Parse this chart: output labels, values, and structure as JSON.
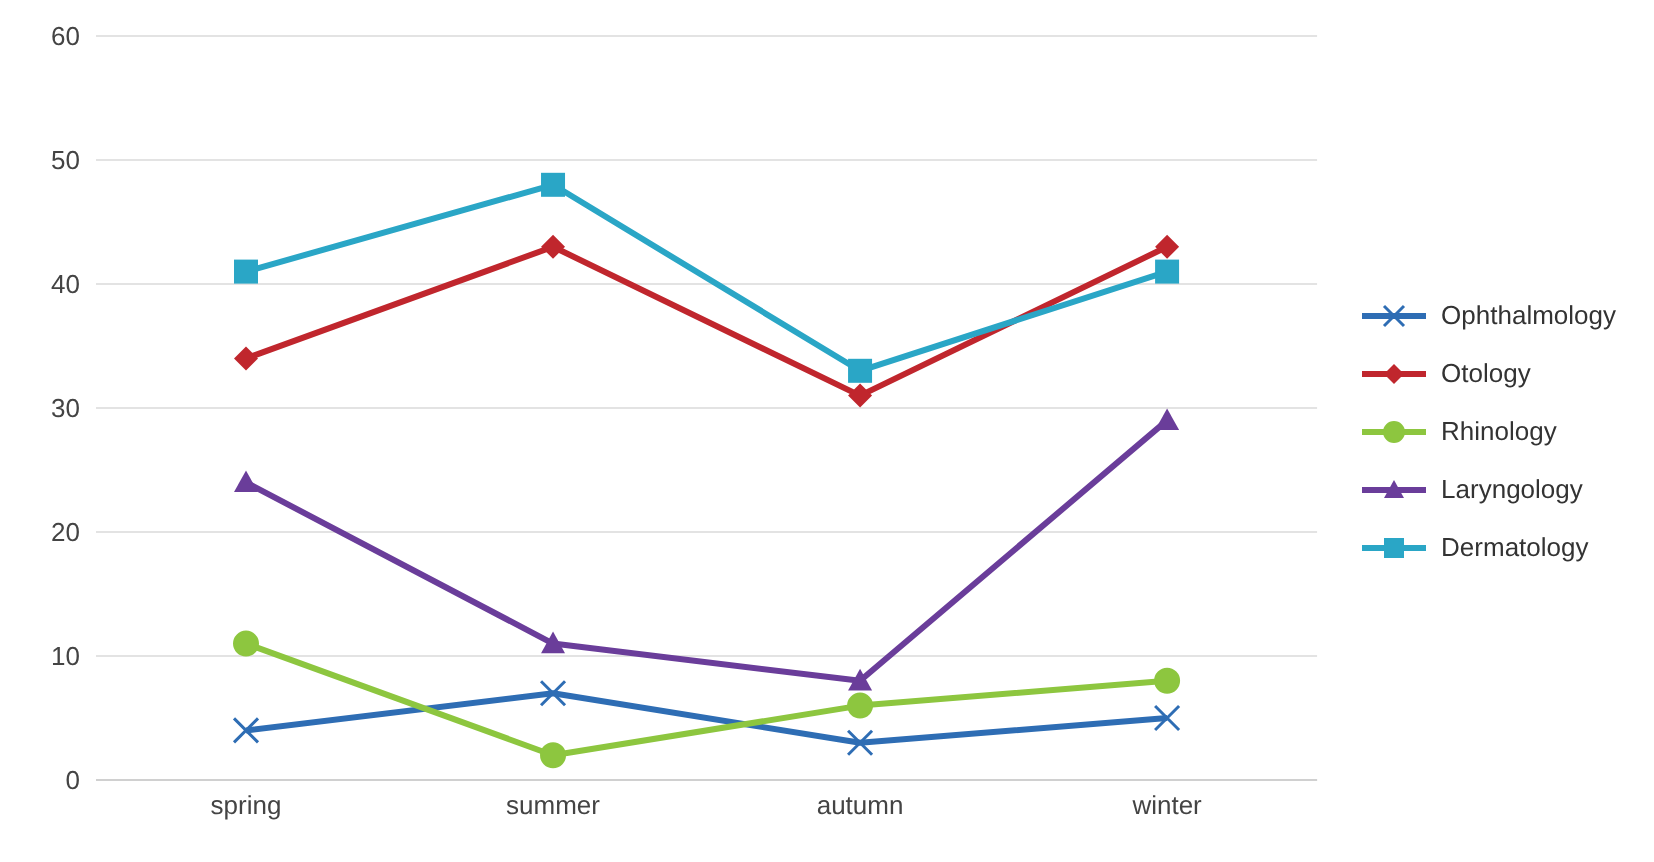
{
  "chart_data": {
    "type": "line",
    "categories": [
      "spring",
      "summer",
      "autumn",
      "winter"
    ],
    "series": [
      {
        "name": "Ophthalmology",
        "color": "#2e6db4",
        "marker": "cross",
        "values": [
          4,
          7,
          3,
          5
        ]
      },
      {
        "name": "Otology",
        "color": "#c0262d",
        "marker": "diamond",
        "values": [
          34,
          43,
          31,
          43
        ]
      },
      {
        "name": "Rhinology",
        "color": "#8dc63f",
        "marker": "circle",
        "values": [
          11,
          2,
          6,
          8
        ]
      },
      {
        "name": "Laryngology",
        "color": "#6a3d9a",
        "marker": "triangle",
        "values": [
          24,
          11,
          8,
          29
        ]
      },
      {
        "name": "Dermatology",
        "color": "#2aa6c6",
        "marker": "square",
        "values": [
          41,
          48,
          33,
          41
        ]
      }
    ],
    "ylim": [
      0,
      60
    ],
    "yticks": [
      0,
      10,
      20,
      30,
      40,
      50,
      60
    ],
    "grid": "y",
    "legend": "right"
  }
}
